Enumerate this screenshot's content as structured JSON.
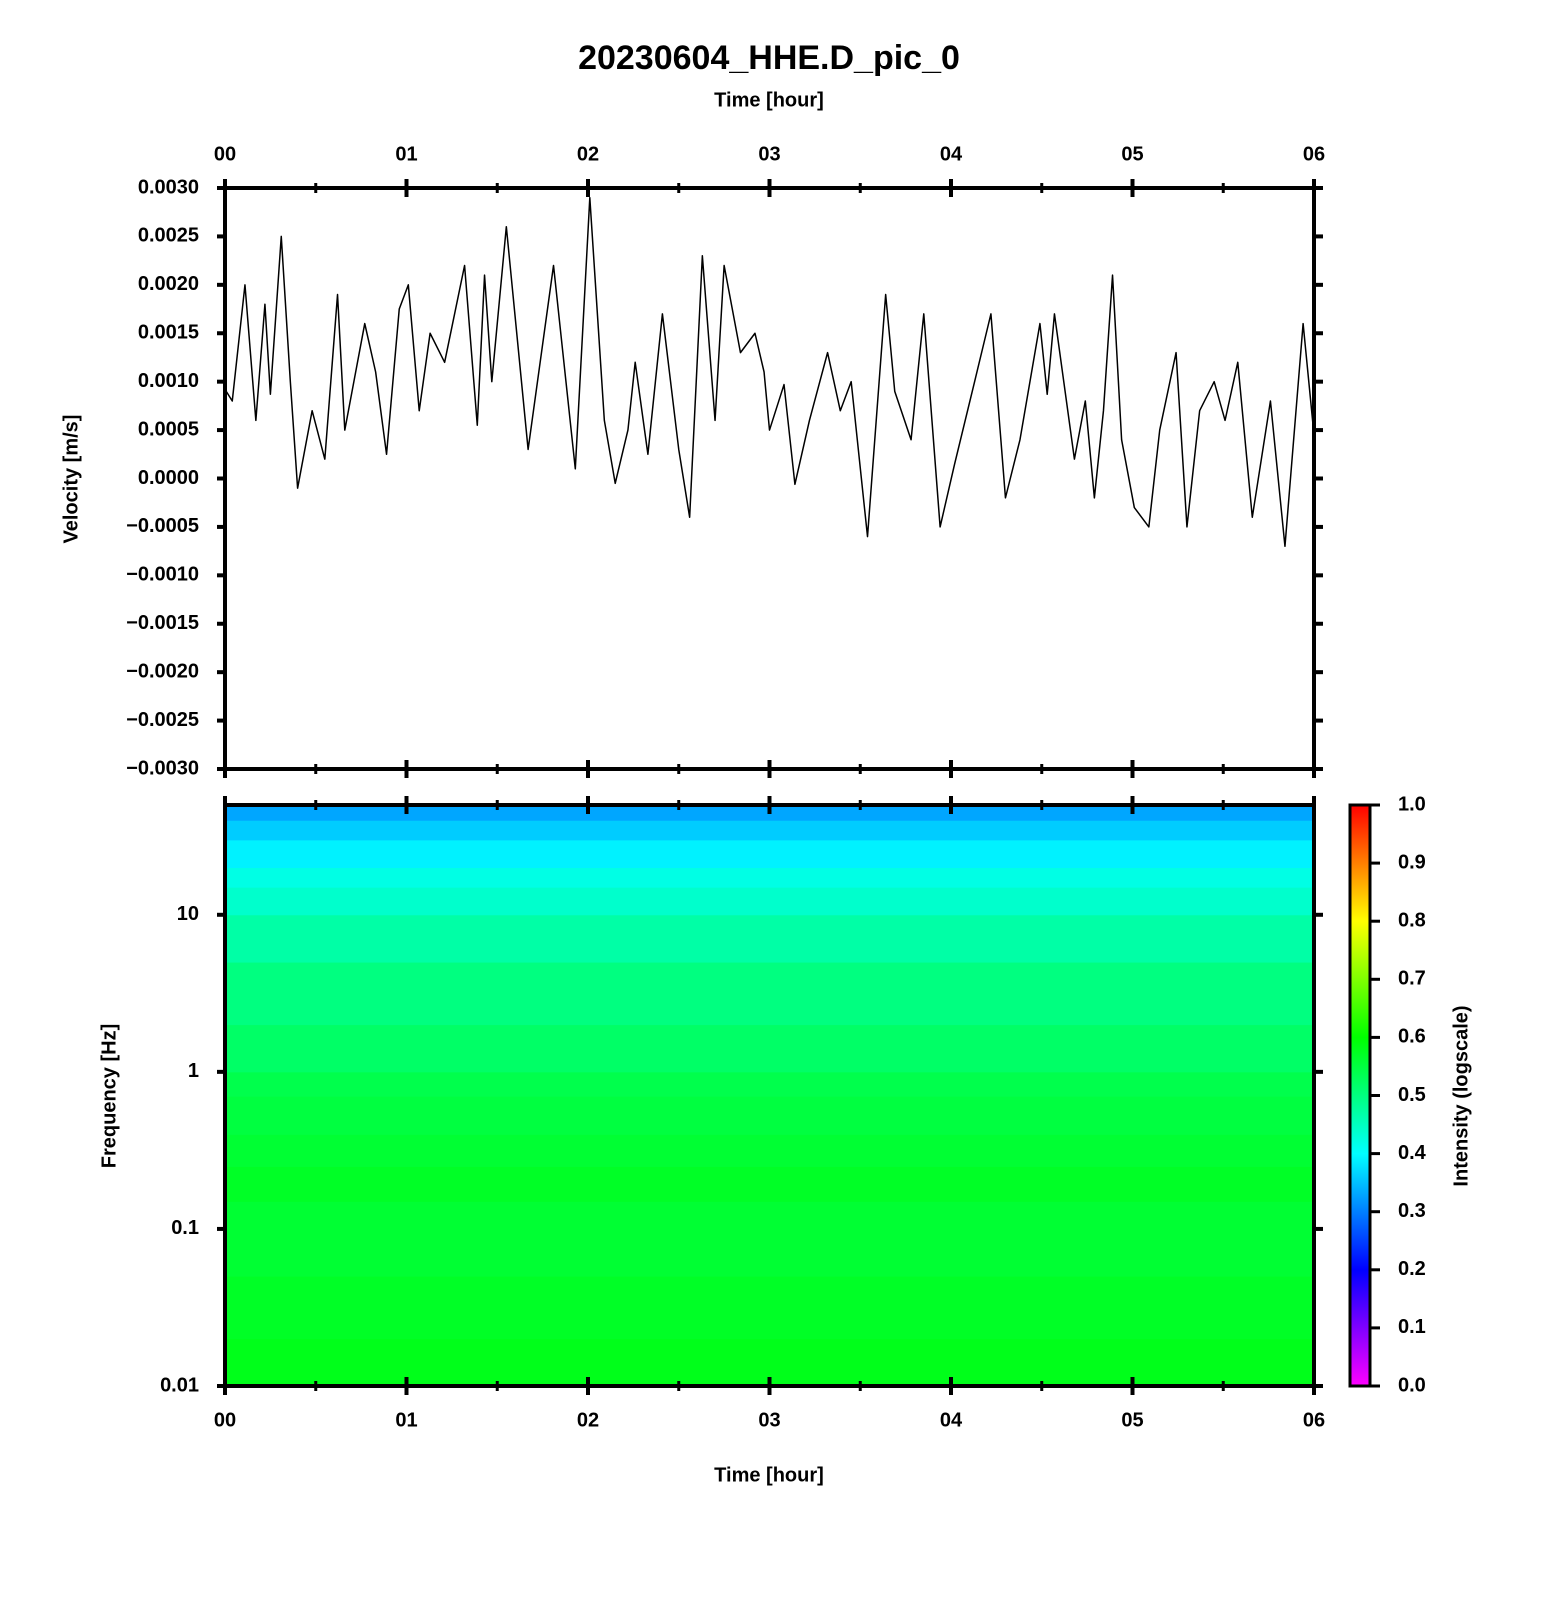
{
  "chart_data": [
    {
      "type": "line",
      "title": "20230604_HHE.D_pic_0",
      "xlabel": "Time [hour]",
      "ylabel": "Velocity [m/s]",
      "xlim": [
        0,
        6
      ],
      "ylim": [
        -0.003,
        0.003
      ],
      "xticks": [
        {
          "value": 0,
          "label": "00"
        },
        {
          "value": 1,
          "label": "01"
        },
        {
          "value": 2,
          "label": "02"
        },
        {
          "value": 3,
          "label": "03"
        },
        {
          "value": 4,
          "label": "04"
        },
        {
          "value": 5,
          "label": "05"
        },
        {
          "value": 6,
          "label": "06"
        }
      ],
      "xminorticks": [
        0.5,
        1.5,
        2.5,
        3.5,
        4.5,
        5.5
      ],
      "yticks": [
        {
          "value": 0.003,
          "label": "0.0030"
        },
        {
          "value": 0.0025,
          "label": "0.0025"
        },
        {
          "value": 0.002,
          "label": "0.0020"
        },
        {
          "value": 0.0015,
          "label": "0.0015"
        },
        {
          "value": 0.001,
          "label": "0.0010"
        },
        {
          "value": 0.0005,
          "label": "0.0005"
        },
        {
          "value": 0,
          "label": "0.0000"
        },
        {
          "value": -0.0005,
          "label": "−0.0005"
        },
        {
          "value": -0.001,
          "label": "−0.0010"
        },
        {
          "value": -0.0015,
          "label": "−0.0015"
        },
        {
          "value": -0.002,
          "label": "−0.0020"
        },
        {
          "value": -0.0025,
          "label": "−0.0025"
        },
        {
          "value": -0.003,
          "label": "−0.0030"
        }
      ],
      "color": "#000000",
      "x": [
        0.0,
        0.04,
        0.11,
        0.17,
        0.22,
        0.25,
        0.31,
        0.36,
        0.4,
        0.48,
        0.55,
        0.62,
        0.66,
        0.77,
        0.83,
        0.89,
        0.96,
        1.01,
        1.07,
        1.13,
        1.21,
        1.32,
        1.39,
        1.43,
        1.47,
        1.55,
        1.67,
        1.81,
        1.93,
        2.01,
        2.09,
        2.15,
        2.22,
        2.26,
        2.33,
        2.41,
        2.5,
        2.56,
        2.63,
        2.7,
        2.75,
        2.84,
        2.92,
        2.97,
        3.0,
        3.08,
        3.14,
        3.22,
        3.32,
        3.39,
        3.45,
        3.54,
        3.64,
        3.69,
        3.78,
        3.85,
        3.94,
        4.02,
        4.13,
        4.22,
        4.3,
        4.38,
        4.49,
        4.53,
        4.57,
        4.68,
        4.74,
        4.79,
        4.84,
        4.89,
        4.94,
        5.01,
        5.09,
        5.15,
        5.24,
        5.3,
        5.37,
        5.45,
        5.51,
        5.58,
        5.66,
        5.76,
        5.84,
        5.94,
        6.0
      ],
      "values": [
        0.00092,
        0.0008,
        0.002,
        0.0006,
        0.0018,
        0.00087,
        0.0025,
        0.001,
        -0.0001,
        0.0007,
        0.0002,
        0.0019,
        0.0005,
        0.0016,
        0.0011,
        0.00025,
        0.00175,
        0.002,
        0.0007,
        0.0015,
        0.0012,
        0.0022,
        0.00055,
        0.0021,
        0.001,
        0.0026,
        0.0003,
        0.0022,
        0.0001,
        0.0029,
        0.0006,
        -5e-05,
        0.0005,
        0.0012,
        0.00025,
        0.0017,
        0.0003,
        -0.0004,
        0.0023,
        0.0006,
        0.0022,
        0.0013,
        0.0015,
        0.0011,
        0.0005,
        0.00097,
        -6e-05,
        0.0006,
        0.0013,
        0.0007,
        0.001,
        -0.0006,
        0.0019,
        0.0009,
        0.0004,
        0.0017,
        -0.0005,
        0.00015,
        0.001,
        0.0017,
        -0.0002,
        0.0004,
        0.0016,
        0.00087,
        0.0017,
        0.0002,
        0.0008,
        -0.0002,
        0.0007,
        0.0021,
        0.0004,
        -0.0003,
        -0.0005,
        0.0005,
        0.0013,
        -0.0005,
        0.0007,
        0.001,
        0.0006,
        0.0012,
        -0.0004,
        0.0008,
        -0.0007,
        0.0016,
        0.00045
      ]
    },
    {
      "type": "heatmap",
      "xlabel": "Time [hour]",
      "ylabel": "Frequency [Hz]",
      "xlim": [
        0,
        6
      ],
      "ylim": [
        0.01,
        50
      ],
      "ylog": true,
      "xticks": [
        {
          "value": 0,
          "label": "00"
        },
        {
          "value": 1,
          "label": "01"
        },
        {
          "value": 2,
          "label": "02"
        },
        {
          "value": 3,
          "label": "03"
        },
        {
          "value": 4,
          "label": "04"
        },
        {
          "value": 5,
          "label": "05"
        },
        {
          "value": 6,
          "label": "06"
        }
      ],
      "xminorticks": [
        0.5,
        1.5,
        2.5,
        3.5,
        4.5,
        5.5
      ],
      "yticks": [
        0.01,
        0.1,
        1,
        10
      ],
      "y_edges": [
        0.01,
        0.02,
        0.05,
        0.1,
        0.15,
        0.25,
        0.4,
        0.7,
        1,
        2,
        5,
        10,
        15,
        20,
        30,
        40,
        50
      ],
      "values": [
        0.58,
        0.57,
        0.56,
        0.56,
        0.57,
        0.56,
        0.55,
        0.54,
        0.52,
        0.5,
        0.47,
        0.44,
        0.42,
        0.39,
        0.36,
        0.33
      ],
      "colormap": [
        "#ff00ff",
        "#0000ff",
        "#00ffff",
        "#00ff00",
        "#ffff00",
        "#ff0000"
      ],
      "clim": [
        0,
        1
      ],
      "colorbar": {
        "label": "Intensity (logscale)",
        "ticks": [
          {
            "value": 0,
            "label": "0.0"
          },
          {
            "value": 0.1,
            "label": "0.1"
          },
          {
            "value": 0.2,
            "label": "0.2"
          },
          {
            "value": 0.3,
            "label": "0.3"
          },
          {
            "value": 0.4,
            "label": "0.4"
          },
          {
            "value": 0.5,
            "label": "0.5"
          },
          {
            "value": 0.6,
            "label": "0.6"
          },
          {
            "value": 0.7,
            "label": "0.7"
          },
          {
            "value": 0.8,
            "label": "0.8"
          },
          {
            "value": 0.9,
            "label": "0.9"
          },
          {
            "value": 1,
            "label": "1.0"
          }
        ]
      }
    }
  ]
}
